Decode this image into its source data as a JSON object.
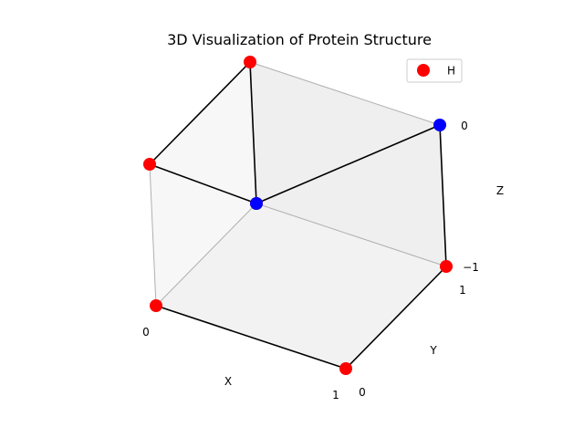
{
  "chart_data": {
    "type": "scatter",
    "title": "3D Visualization of Protein Structure",
    "xlabel": "X",
    "ylabel": "Y",
    "zlabel": "Z",
    "xlim": [
      0,
      1
    ],
    "ylim": [
      0,
      1
    ],
    "zlim": [
      -1,
      0
    ],
    "x_ticks": [
      "0",
      "1"
    ],
    "y_ticks": [
      "0",
      "1"
    ],
    "z_ticks": [
      "−1",
      "0"
    ],
    "legend": {
      "placement": "top-right",
      "entries": [
        "H"
      ]
    },
    "colors": {
      "H": "#ff0000",
      "P": "#0000ff",
      "backbone": "#000000"
    },
    "points": [
      {
        "x": 0,
        "y": 0,
        "z": -1,
        "type": "H"
      },
      {
        "x": 1,
        "y": 0,
        "z": -1,
        "type": "H"
      },
      {
        "x": 1,
        "y": 1,
        "z": -1,
        "type": "H"
      },
      {
        "x": 1,
        "y": 1,
        "z": 0,
        "type": "P"
      },
      {
        "x": 0,
        "y": 1,
        "z": -1,
        "type": "H"
      },
      {
        "x": 0,
        "y": 0,
        "z": 0,
        "type": "H"
      },
      {
        "x": 0,
        "y": 1,
        "z": 0,
        "type": "H"
      },
      {
        "x": 0,
        "y": 1,
        "z": -1,
        "type": "P"
      }
    ]
  }
}
